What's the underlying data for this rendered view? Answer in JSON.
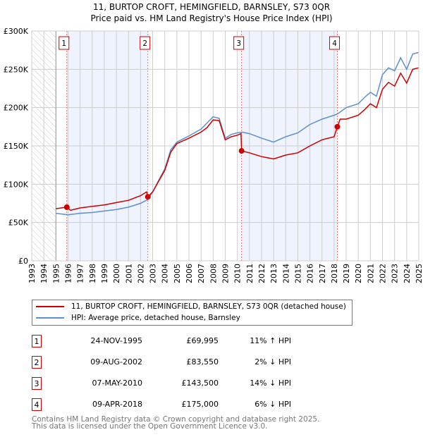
{
  "chart_data": {
    "type": "line",
    "title": "11, BURTOP CROFT, HEMINGFIELD, BARNSLEY, S73 0QR",
    "subtitle": "Price paid vs. HM Land Registry's House Price Index (HPI)",
    "xlim": [
      1993,
      2025
    ],
    "ylim": [
      0,
      300000
    ],
    "x_ticks": [
      "1993",
      "1994",
      "1995",
      "1996",
      "1997",
      "1998",
      "1999",
      "2000",
      "2001",
      "2002",
      "2003",
      "2004",
      "2005",
      "2006",
      "2007",
      "2008",
      "2009",
      "2010",
      "2011",
      "2012",
      "2013",
      "2014",
      "2015",
      "2016",
      "2017",
      "2018",
      "2019",
      "2020",
      "2021",
      "2022",
      "2023",
      "2024",
      "2025"
    ],
    "y_ticks": [
      {
        "v": 0,
        "label": "£0"
      },
      {
        "v": 50000,
        "label": "£50K"
      },
      {
        "v": 100000,
        "label": "£100K"
      },
      {
        "v": 150000,
        "label": "£150K"
      },
      {
        "v": 200000,
        "label": "£200K"
      },
      {
        "v": 250000,
        "label": "£250K"
      },
      {
        "v": 300000,
        "label": "£300K"
      }
    ],
    "grid": true,
    "hatched_range": [
      1993,
      1995
    ],
    "shaded_ranges": [
      [
        1995.9,
        2002.6
      ],
      [
        2010.35,
        2018.27
      ]
    ],
    "colors": {
      "price": "#cc0000",
      "hpi": "#5b8fd0",
      "shade": "#eef3fd"
    },
    "series": [
      {
        "name": "11, BURTOP CROFT, HEMINGFIELD, BARNSLEY, S73 0QR (detached house)",
        "points": [
          [
            1995,
            68000
          ],
          [
            1995.9,
            70000
          ],
          [
            1996.2,
            66000
          ],
          [
            1997,
            69000
          ],
          [
            1998,
            71000
          ],
          [
            1999,
            73000
          ],
          [
            2000,
            76000
          ],
          [
            2001,
            79000
          ],
          [
            2002,
            85000
          ],
          [
            2002.5,
            90000
          ],
          [
            2002.6,
            83550
          ],
          [
            2003,
            90000
          ],
          [
            2003.5,
            104000
          ],
          [
            2004,
            118000
          ],
          [
            2004.5,
            142000
          ],
          [
            2005,
            153000
          ],
          [
            2006,
            160000
          ],
          [
            2007,
            168000
          ],
          [
            2007.5,
            174000
          ],
          [
            2008,
            184000
          ],
          [
            2008.5,
            183000
          ],
          [
            2009,
            158000
          ],
          [
            2009.5,
            162000
          ],
          [
            2010,
            164000
          ],
          [
            2010.3,
            166000
          ],
          [
            2010.35,
            143500
          ],
          [
            2011,
            141000
          ],
          [
            2012,
            136000
          ],
          [
            2013,
            133000
          ],
          [
            2014,
            138000
          ],
          [
            2015,
            141000
          ],
          [
            2016,
            150000
          ],
          [
            2017,
            158000
          ],
          [
            2018,
            162000
          ],
          [
            2018.27,
            175000
          ],
          [
            2018.5,
            185000
          ],
          [
            2019,
            185000
          ],
          [
            2020,
            190000
          ],
          [
            2020.5,
            197000
          ],
          [
            2021,
            205000
          ],
          [
            2021.5,
            200000
          ],
          [
            2022,
            224000
          ],
          [
            2022.5,
            233000
          ],
          [
            2023,
            228000
          ],
          [
            2023.5,
            245000
          ],
          [
            2024,
            232000
          ],
          [
            2024.5,
            250000
          ],
          [
            2025,
            252000
          ]
        ]
      },
      {
        "name": "HPI: Average price, detached house, Barnsley",
        "points": [
          [
            1995,
            62000
          ],
          [
            1996,
            60000
          ],
          [
            1997,
            62000
          ],
          [
            1998,
            63000
          ],
          [
            1999,
            65000
          ],
          [
            2000,
            67000
          ],
          [
            2001,
            70000
          ],
          [
            2002,
            75000
          ],
          [
            2002.6,
            80000
          ],
          [
            2003,
            90000
          ],
          [
            2003.5,
            105000
          ],
          [
            2004,
            120000
          ],
          [
            2004.5,
            145000
          ],
          [
            2005,
            155000
          ],
          [
            2006,
            163000
          ],
          [
            2007,
            172000
          ],
          [
            2007.5,
            180000
          ],
          [
            2008,
            188000
          ],
          [
            2008.5,
            186000
          ],
          [
            2009,
            160000
          ],
          [
            2009.5,
            165000
          ],
          [
            2010,
            167000
          ],
          [
            2010.35,
            168000
          ],
          [
            2011,
            166000
          ],
          [
            2012,
            160000
          ],
          [
            2013,
            155000
          ],
          [
            2014,
            162000
          ],
          [
            2015,
            167000
          ],
          [
            2016,
            178000
          ],
          [
            2017,
            185000
          ],
          [
            2018,
            190000
          ],
          [
            2018.3,
            192000
          ],
          [
            2019,
            200000
          ],
          [
            2020,
            205000
          ],
          [
            2020.5,
            213000
          ],
          [
            2021,
            220000
          ],
          [
            2021.5,
            215000
          ],
          [
            2022,
            243000
          ],
          [
            2022.5,
            252000
          ],
          [
            2023,
            248000
          ],
          [
            2023.5,
            265000
          ],
          [
            2024,
            250000
          ],
          [
            2024.5,
            270000
          ],
          [
            2025,
            272000
          ]
        ]
      }
    ],
    "sales": [
      {
        "id": "1",
        "t": 1995.9,
        "price": 69995,
        "date": "24-NOV-1995",
        "price_label": "£69,995",
        "hpi": "11% ↑ HPI"
      },
      {
        "id": "2",
        "t": 2002.6,
        "price": 83550,
        "date": "09-AUG-2002",
        "price_label": "£83,550",
        "hpi": "2% ↓ HPI"
      },
      {
        "id": "3",
        "t": 2010.35,
        "price": 143500,
        "date": "07-MAY-2010",
        "price_label": "£143,500",
        "hpi": "14% ↓ HPI"
      },
      {
        "id": "4",
        "t": 2018.27,
        "price": 175000,
        "date": "09-APR-2018",
        "price_label": "£175,000",
        "hpi": "6% ↓ HPI"
      }
    ]
  },
  "legend": {
    "price": "11, BURTOP CROFT, HEMINGFIELD, BARNSLEY, S73 0QR (detached house)",
    "hpi": "HPI: Average price, detached house, Barnsley"
  },
  "footer": {
    "line1": "Contains HM Land Registry data © Crown copyright and database right 2025.",
    "line2": "This data is licensed under the Open Government Licence v3.0."
  }
}
